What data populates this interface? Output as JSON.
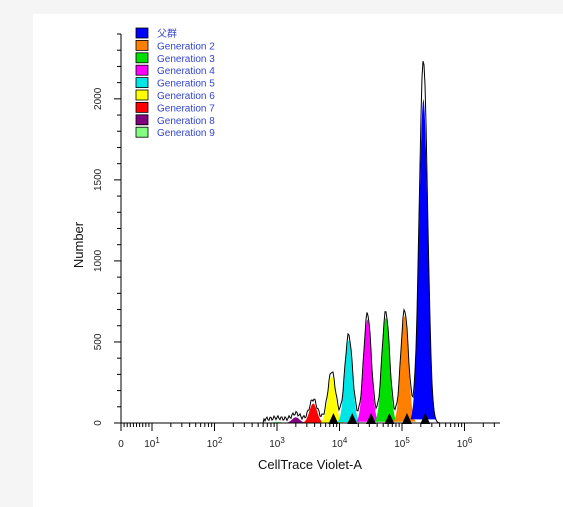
{
  "chart_data": {
    "type": "area",
    "xlabel": "CellTrace Violet-A",
    "ylabel": "Number",
    "x_scale": "biexponential",
    "x_tick_labels": [
      {
        "value": 0,
        "label": "0",
        "sup": ""
      },
      {
        "value": 10,
        "label": "10",
        "sup": "1"
      },
      {
        "value": 100,
        "label": "10",
        "sup": "2"
      },
      {
        "value": 1000,
        "label": "10",
        "sup": "3"
      },
      {
        "value": 10000,
        "label": "10",
        "sup": "4"
      },
      {
        "value": 100000,
        "label": "10",
        "sup": "5"
      },
      {
        "value": 1000000,
        "label": "10",
        "sup": "6"
      }
    ],
    "ylim": [
      0,
      2400
    ],
    "y_ticks": [
      0,
      500,
      1000,
      1500,
      2000
    ],
    "grid": false,
    "legend_position": "top-left",
    "series": [
      {
        "name": "父群",
        "color": "#0000ff",
        "peak_x": 220000,
        "peak_y": 2000
      },
      {
        "name": "Generation 2",
        "color": "#ff8000",
        "peak_x": 110000,
        "peak_y": 660
      },
      {
        "name": "Generation 3",
        "color": "#00e000",
        "peak_x": 55000,
        "peak_y": 650
      },
      {
        "name": "Generation 4",
        "color": "#ff00ff",
        "peak_x": 28000,
        "peak_y": 640
      },
      {
        "name": "Generation 5",
        "color": "#00e5e5",
        "peak_x": 14000,
        "peak_y": 510
      },
      {
        "name": "Generation 6",
        "color": "#ffff00",
        "peak_x": 7500,
        "peak_y": 290
      },
      {
        "name": "Generation 7",
        "color": "#ff0000",
        "peak_x": 3800,
        "peak_y": 120
      },
      {
        "name": "Generation 8",
        "color": "#800080",
        "peak_x": 2000,
        "peak_y": 35
      },
      {
        "name": "Generation 9",
        "color": "#80ff80",
        "peak_x": 1000,
        "peak_y": 8
      }
    ],
    "outline_peak_y": 2220,
    "markers_x": [
      8000,
      16000,
      32000,
      63000,
      120000,
      235000
    ]
  }
}
